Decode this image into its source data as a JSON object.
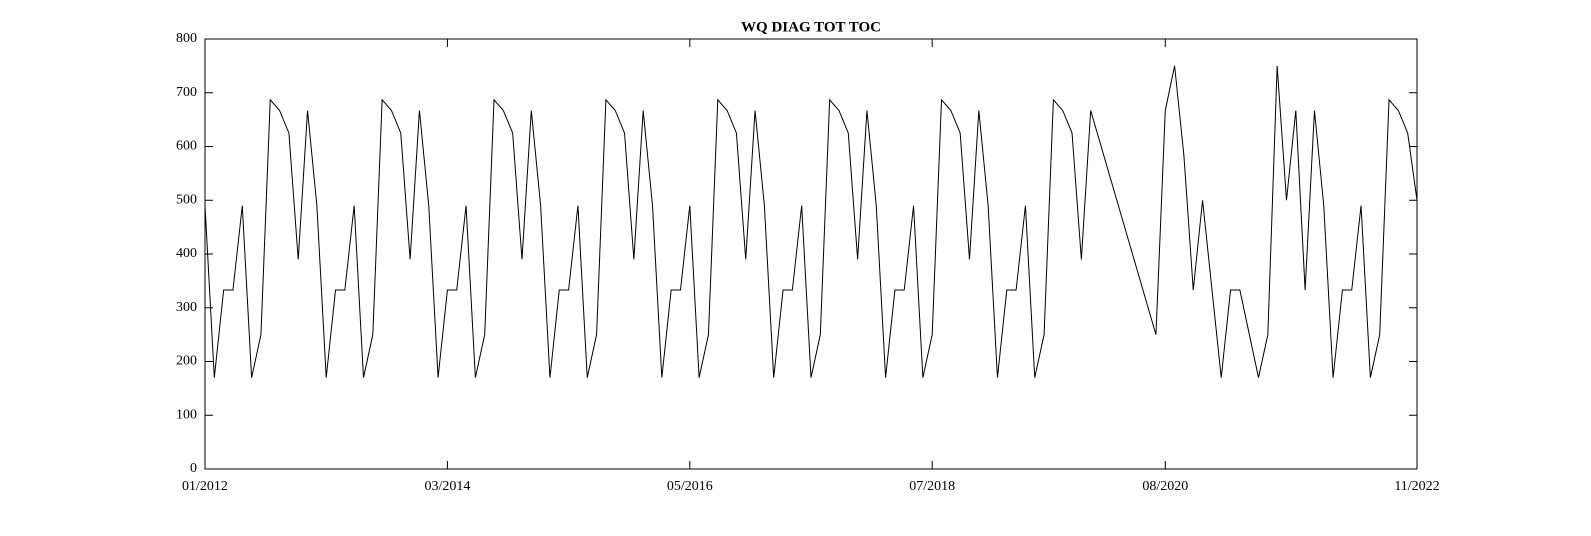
{
  "chart_data": {
    "type": "line",
    "title": "WQ DIAG TOT TOC",
    "color": "#000000",
    "x": [
      "01/2012",
      "02/2012",
      "03/2012",
      "04/2012",
      "05/2012",
      "06/2012",
      "07/2012",
      "08/2012",
      "09/2012",
      "10/2012",
      "11/2012",
      "12/2012",
      "01/2013",
      "02/2013",
      "03/2013",
      "04/2013",
      "05/2013",
      "06/2013",
      "07/2013",
      "08/2013",
      "09/2013",
      "10/2013",
      "11/2013",
      "12/2013",
      "01/2014",
      "02/2014",
      "03/2014",
      "04/2014",
      "05/2014",
      "06/2014",
      "07/2014",
      "08/2014",
      "09/2014",
      "10/2014",
      "11/2014",
      "12/2014",
      "01/2015",
      "02/2015",
      "03/2015",
      "04/2015",
      "05/2015",
      "06/2015",
      "07/2015",
      "08/2015",
      "09/2015",
      "10/2015",
      "11/2015",
      "12/2015",
      "01/2016",
      "02/2016",
      "03/2016",
      "04/2016",
      "05/2016",
      "06/2016",
      "07/2016",
      "08/2016",
      "09/2016",
      "10/2016",
      "11/2016",
      "12/2016",
      "01/2017",
      "02/2017",
      "03/2017",
      "04/2017",
      "05/2017",
      "06/2017",
      "07/2017",
      "08/2017",
      "09/2017",
      "10/2017",
      "11/2017",
      "12/2017",
      "01/2018",
      "02/2018",
      "03/2018",
      "04/2018",
      "05/2018",
      "06/2018",
      "07/2018",
      "08/2018",
      "09/2018",
      "10/2018",
      "11/2018",
      "12/2018",
      "01/2019",
      "02/2019",
      "03/2019",
      "04/2019",
      "05/2019",
      "06/2019",
      "07/2019",
      "08/2019",
      "09/2019",
      "10/2019",
      "11/2019",
      "12/2019",
      "07/2020",
      "08/2020",
      "09/2020",
      "10/2020",
      "11/2020",
      "12/2020",
      "02/2021",
      "03/2021",
      "04/2021",
      "06/2021",
      "07/2021",
      "08/2021",
      "09/2021",
      "10/2021",
      "11/2021",
      "12/2021",
      "01/2022",
      "02/2022",
      "03/2022",
      "04/2022",
      "05/2022",
      "06/2022",
      "07/2022",
      "08/2022",
      "09/2022",
      "10/2022",
      "11/2022"
    ],
    "values": [
      490,
      170,
      333,
      333,
      490,
      170,
      250,
      687,
      667,
      625,
      390,
      667,
      490,
      170,
      333,
      333,
      490,
      170,
      250,
      687,
      667,
      625,
      390,
      667,
      490,
      170,
      333,
      333,
      490,
      170,
      250,
      687,
      667,
      625,
      390,
      667,
      490,
      170,
      333,
      333,
      490,
      170,
      250,
      687,
      667,
      625,
      390,
      667,
      490,
      170,
      333,
      333,
      490,
      170,
      250,
      687,
      667,
      625,
      390,
      667,
      490,
      170,
      333,
      333,
      490,
      170,
      250,
      687,
      667,
      625,
      390,
      667,
      490,
      170,
      333,
      333,
      490,
      170,
      250,
      687,
      667,
      625,
      390,
      667,
      490,
      170,
      333,
      333,
      490,
      170,
      250,
      687,
      667,
      625,
      390,
      667,
      250,
      667,
      750,
      583,
      333,
      500,
      170,
      333,
      333,
      170,
      250,
      750,
      500,
      667,
      333,
      667,
      490,
      170,
      333,
      333,
      490,
      170,
      250,
      687,
      667,
      625,
      500
    ],
    "xlim": [
      "01/2012",
      "11/2022"
    ],
    "xticks": [
      "01/2012",
      "03/2014",
      "05/2016",
      "07/2018",
      "08/2020",
      "11/2022"
    ],
    "ylim": [
      0,
      800
    ],
    "yticks": [
      0,
      100,
      200,
      300,
      400,
      500,
      600,
      700,
      800
    ]
  }
}
